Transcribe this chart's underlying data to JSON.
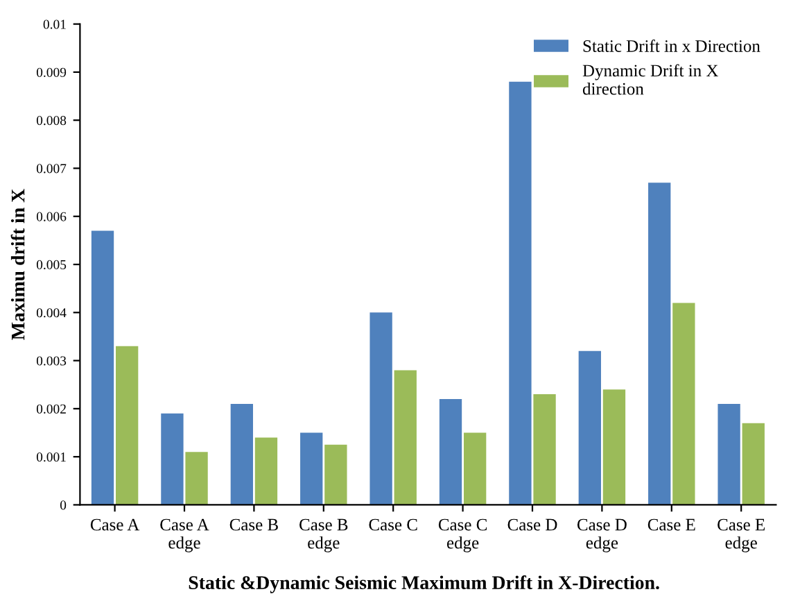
{
  "chart_data": {
    "type": "bar",
    "title": "Static &Dynamic Seismic Maximum Drift in X-Direction.",
    "ylabel": "Maximu drift in X",
    "categories": [
      "Case A",
      "Case A\nedge",
      "Case B",
      "Case B\nedge",
      "Case C",
      "Case C\nedge",
      "Case D",
      "Case D\nedge",
      "Case E",
      "Case E\nedge"
    ],
    "series": [
      {
        "name": "Static Drift in x Direction",
        "color": "#4f81bd",
        "values": [
          0.0057,
          0.0019,
          0.0021,
          0.0015,
          0.004,
          0.0022,
          0.0088,
          0.0032,
          0.0067,
          0.0021
        ]
      },
      {
        "name": "Dynamic Drift in X\ndirection",
        "color": "#9bbb59",
        "values": [
          0.0033,
          0.0011,
          0.0014,
          0.00125,
          0.0028,
          0.0015,
          0.0023,
          0.0024,
          0.0042,
          0.0017
        ]
      }
    ],
    "ylim": [
      0,
      0.01
    ],
    "yticks": [
      0,
      0.001,
      0.002,
      0.003,
      0.004,
      0.005,
      0.006,
      0.007,
      0.008,
      0.009,
      0.01
    ],
    "legend": "top right",
    "grid": false
  }
}
